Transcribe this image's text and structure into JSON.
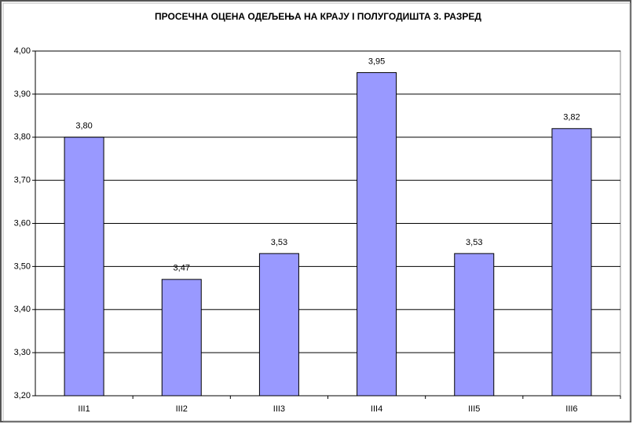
{
  "chart_data": {
    "type": "bar",
    "title": "ПРОСЕЧНА ОЦЕНА ОДЕЉЕЊА НА КРАЈУ  I ПОЛУГОДИШТА 3. РАЗРЕД",
    "categories": [
      "III1",
      "III2",
      "III3",
      "III4",
      "III5",
      "III6"
    ],
    "values": [
      3.8,
      3.47,
      3.53,
      3.95,
      3.53,
      3.82
    ],
    "value_labels": [
      "3,80",
      "3,47",
      "3,53",
      "3,95",
      "3,53",
      "3,82"
    ],
    "color": "#9999ff",
    "ylim": [
      3.2,
      4.0
    ],
    "yticks": [
      {
        "value": 3.2,
        "label": "3,20"
      },
      {
        "value": 3.3,
        "label": "3,30"
      },
      {
        "value": 3.4,
        "label": "3,40"
      },
      {
        "value": 3.5,
        "label": "3,50"
      },
      {
        "value": 3.6,
        "label": "3,60"
      },
      {
        "value": 3.7,
        "label": "3,70"
      },
      {
        "value": 3.8,
        "label": "3,80"
      },
      {
        "value": 3.9,
        "label": "3,90"
      },
      {
        "value": 4.0,
        "label": "4,00"
      }
    ],
    "grid": true
  }
}
